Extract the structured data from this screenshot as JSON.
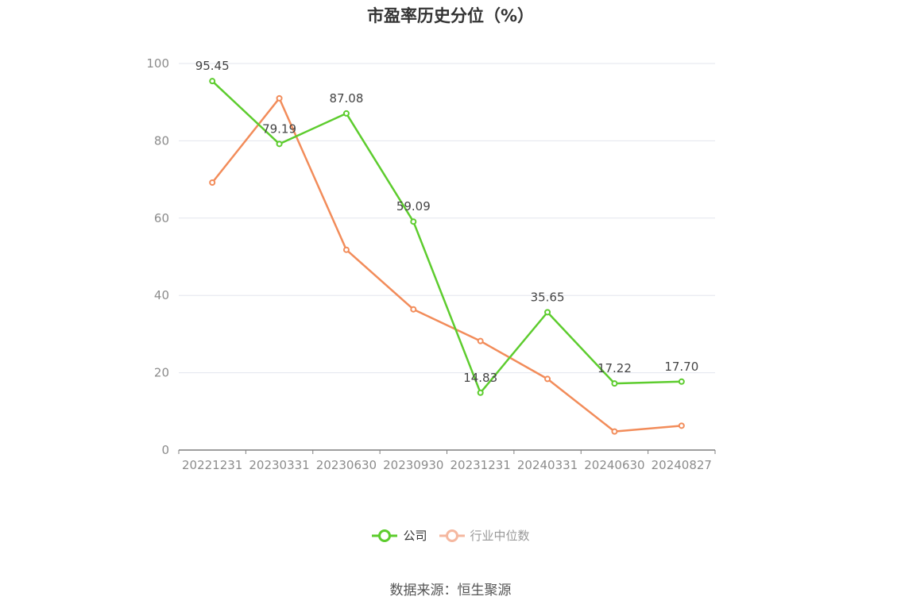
{
  "chart_data": {
    "type": "line",
    "title": "市盈率历史分位（%）",
    "categories": [
      "20221231",
      "20230331",
      "20230630",
      "20230930",
      "20231231",
      "20240331",
      "20240630",
      "20240827"
    ],
    "series": [
      {
        "name": "公司",
        "color": "#5dcc2e",
        "values": [
          95.45,
          79.19,
          87.08,
          59.09,
          14.83,
          35.65,
          17.22,
          17.7
        ],
        "labels": [
          "95.45",
          "79.19",
          "87.08",
          "59.09",
          "14.83",
          "35.65",
          "17.22",
          "17.70"
        ]
      },
      {
        "name": "行业中位数",
        "color": "#f28c5a",
        "legend_color": "#f5b8a0",
        "values": [
          69.2,
          91.0,
          51.8,
          36.4,
          28.2,
          18.4,
          4.8,
          6.3
        ]
      }
    ],
    "ylim": [
      0,
      100
    ],
    "yticks": [
      0,
      20,
      40,
      60,
      80,
      100
    ],
    "grid": true,
    "legend_position": "bottom"
  },
  "source": "数据来源：恒生聚源"
}
